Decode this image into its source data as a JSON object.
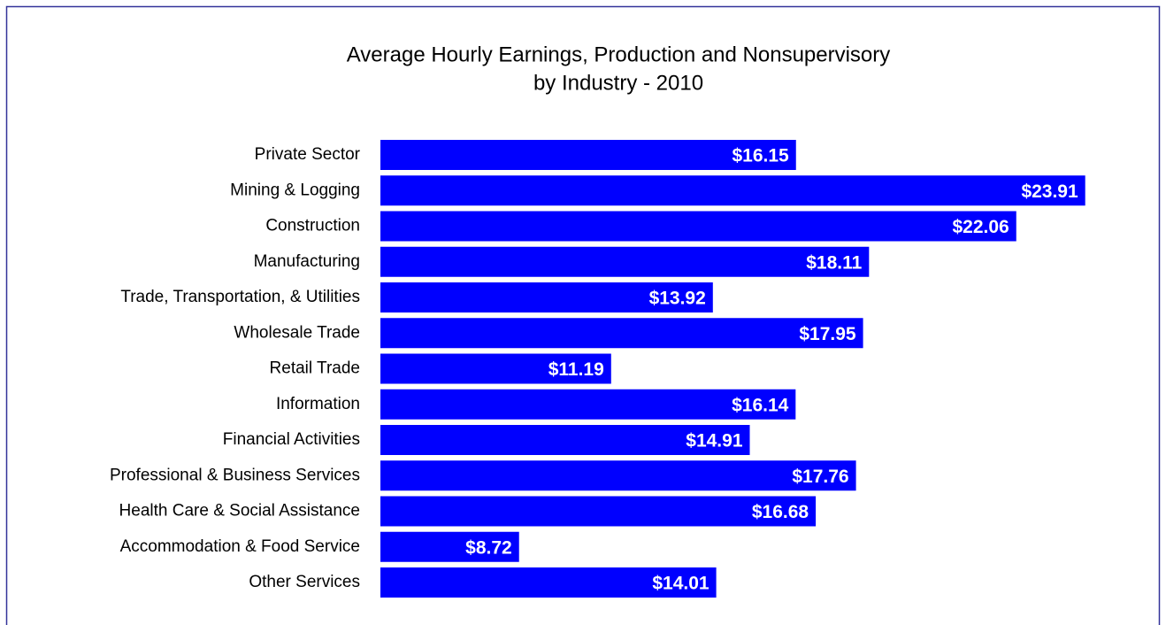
{
  "chart_data": {
    "type": "bar",
    "orientation": "horizontal",
    "title": [
      "Average Hourly  Earnings,  Production and Nonsupervisory",
      "by Industry - 2010"
    ],
    "categories": [
      "Private Sector",
      "Mining & Logging",
      "Construction",
      "Manufacturing",
      "Trade, Transportation, & Utilities",
      "Wholesale Trade",
      "Retail Trade",
      "Information",
      "Financial Activities",
      "Professional & Business Services",
      "Health Care & Social Assistance",
      "Accommodation & Food Service",
      "Other Services"
    ],
    "values": [
      16.15,
      23.91,
      22.06,
      18.11,
      13.92,
      17.95,
      11.19,
      16.14,
      14.91,
      17.76,
      16.68,
      8.72,
      14.01
    ],
    "value_labels": [
      "$16.15",
      "$23.91",
      "$22.06",
      "$18.11",
      "$13.92",
      "$17.95",
      "$11.19",
      "$16.14",
      "$14.91",
      "$17.76",
      "$16.68",
      "$8.72",
      "$14.01"
    ],
    "color": "#0000ff",
    "xlim": [
      5,
      25
    ]
  }
}
